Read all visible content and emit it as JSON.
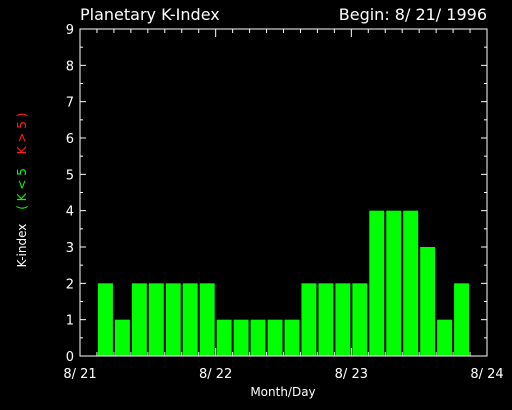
{
  "chart_data": {
    "type": "bar",
    "title": "Planetary K-Index",
    "begin_label": "Begin: 8/ 21/ 1996",
    "xlabel": "Month/Day",
    "ylabel_parts": [
      {
        "text": "K-index",
        "color": "#ffffff"
      },
      {
        "text": "( K < 5",
        "color": "#00ff00"
      },
      {
        "text": "K > 5 )",
        "color": "#ff2020"
      }
    ],
    "x_ticks": [
      "8/ 21",
      "8/ 22",
      "8/ 23",
      "8/ 24"
    ],
    "y_ticks": [
      "0",
      "1",
      "2",
      "3",
      "4",
      "5",
      "6",
      "7",
      "8",
      "9"
    ],
    "ylim": [
      0,
      9
    ],
    "xlim_days": [
      0,
      3
    ],
    "interval_hours": 3,
    "values": [
      2,
      1,
      2,
      2,
      2,
      2,
      2,
      1,
      1,
      1,
      1,
      1,
      2,
      2,
      2,
      2,
      4,
      4,
      4,
      3,
      1,
      2
    ],
    "colors": {
      "low": "#00ff00",
      "high": "#ff2020",
      "background": "#000000",
      "axes": "#ffffff",
      "text": "#ffffff"
    },
    "grid": false,
    "legend": "none"
  }
}
